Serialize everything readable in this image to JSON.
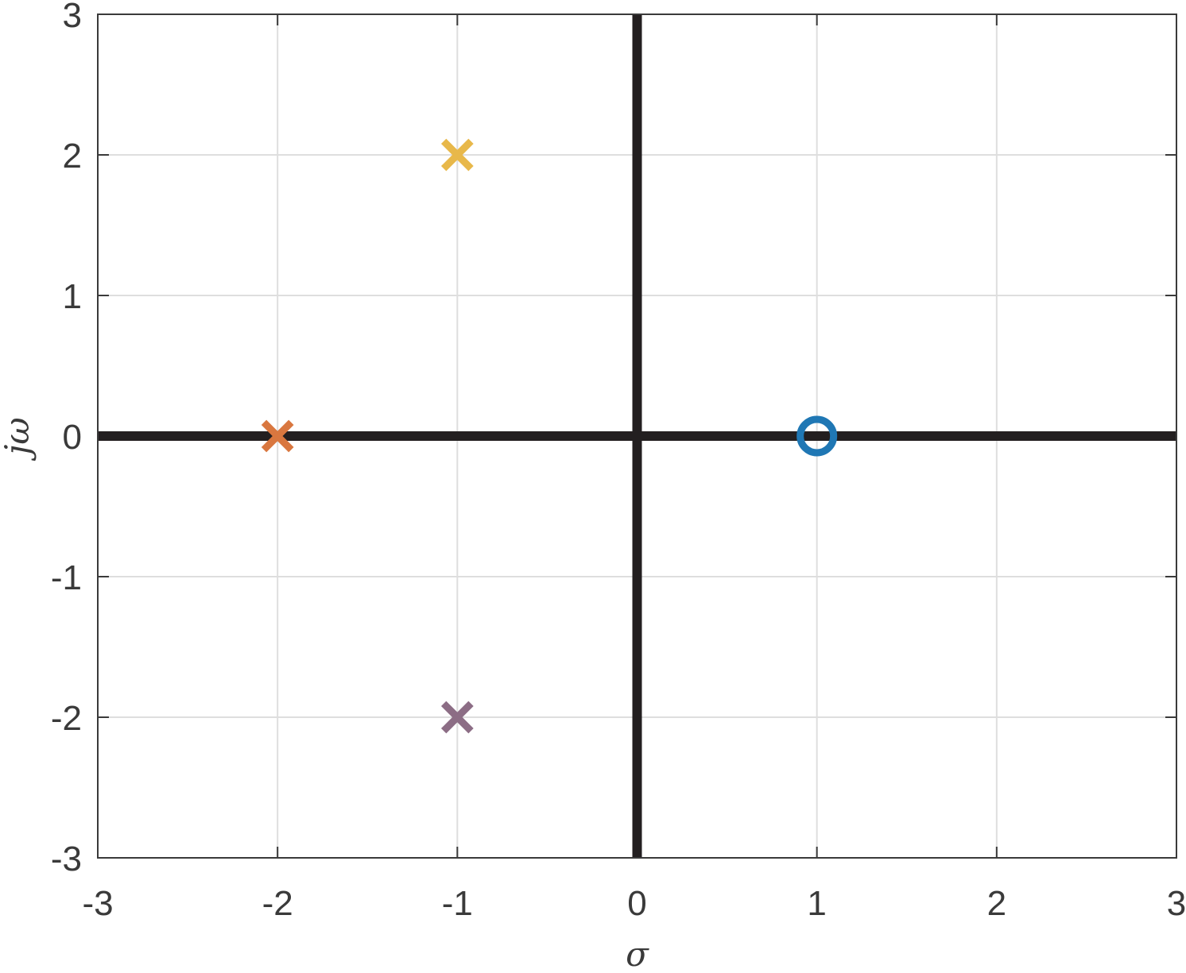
{
  "chart_data": {
    "type": "scatter",
    "title": "",
    "xlabel": "σ",
    "ylabel": "jω",
    "xlim": [
      -3,
      3
    ],
    "ylim": [
      -3,
      3
    ],
    "xticks": [
      -3,
      -2,
      -1,
      0,
      1,
      2,
      3
    ],
    "yticks": [
      -3,
      -2,
      -1,
      0,
      1,
      2,
      3
    ],
    "grid": true,
    "legend": "none",
    "axis_line_color": "#231f20",
    "series": [
      {
        "marker": "o",
        "color": "#1f77b4",
        "points": [
          {
            "x": 1,
            "y": 0
          }
        ]
      },
      {
        "marker": "x",
        "color": "#d9773f",
        "points": [
          {
            "x": -2,
            "y": 0
          }
        ]
      },
      {
        "marker": "x",
        "color": "#e8b84a",
        "points": [
          {
            "x": -1,
            "y": 2
          }
        ]
      },
      {
        "marker": "x",
        "color": "#8c6d85",
        "points": [
          {
            "x": -1,
            "y": -2
          }
        ]
      }
    ]
  }
}
